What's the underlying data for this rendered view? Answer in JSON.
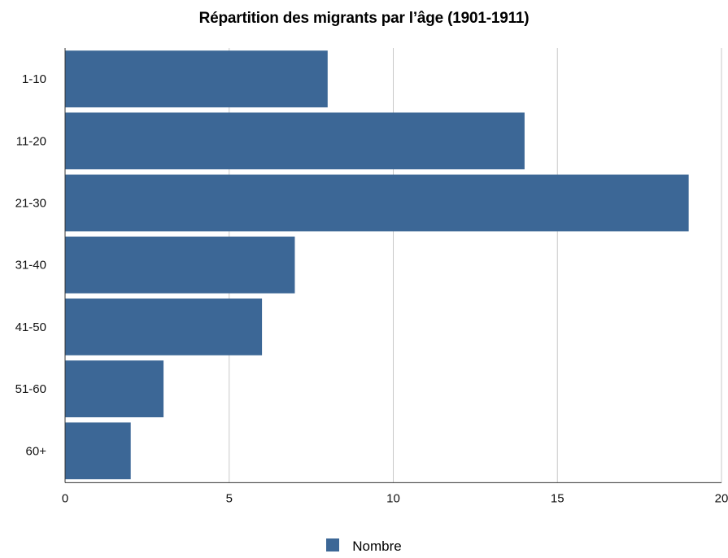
{
  "chart_data": {
    "type": "bar",
    "orientation": "horizontal",
    "title": "Répartition des migrants par l’âge (1901-1911)",
    "xlabel": "",
    "ylabel": "",
    "categories": [
      "1-10",
      "11-20",
      "21-30",
      "31-40",
      "41-50",
      "51-60",
      "60+"
    ],
    "series": [
      {
        "name": "Nombre",
        "color": "#3c6796",
        "values": [
          8,
          14,
          19,
          7,
          6,
          3,
          2
        ]
      }
    ],
    "xlim": [
      0,
      20
    ],
    "x_ticks": [
      0,
      5,
      10,
      15,
      20
    ],
    "grid": "vertical",
    "legend_position": "bottom-center"
  }
}
